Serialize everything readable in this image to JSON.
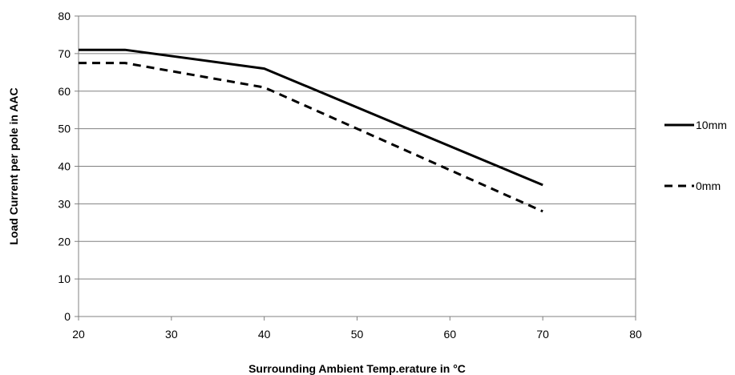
{
  "chart_data": {
    "type": "line",
    "xlabel": "Surrounding  Ambient Temp.erature  in °C",
    "ylabel": "Load Current per pole in AAC",
    "xlim": [
      20,
      80
    ],
    "ylim": [
      0,
      80
    ],
    "x_ticks": [
      "20",
      "30",
      "40",
      "50",
      "60",
      "70",
      "80"
    ],
    "y_ticks": [
      "0",
      "10",
      "20",
      "30",
      "40",
      "50",
      "60",
      "70",
      "80"
    ],
    "grid": "horizontal",
    "legend_position": "right",
    "series": [
      {
        "name": "10mm",
        "style": "solid",
        "color": "#000000",
        "x": [
          20,
          25,
          40,
          70
        ],
        "y": [
          71,
          71,
          66,
          35
        ]
      },
      {
        "name": "0mm",
        "style": "dashed",
        "color": "#000000",
        "x": [
          20,
          25,
          40,
          70
        ],
        "y": [
          67.5,
          67.5,
          61,
          28
        ]
      }
    ]
  }
}
